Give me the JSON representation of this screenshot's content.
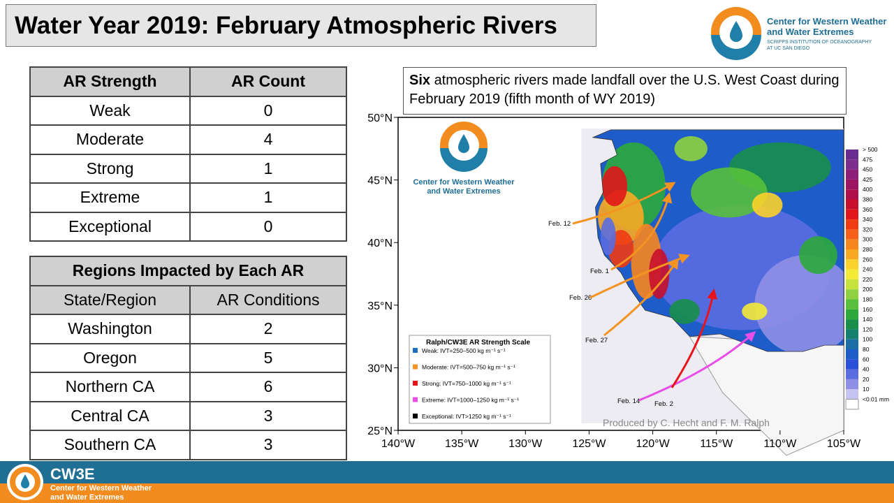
{
  "title": "Water Year 2019: February Atmospheric Rivers",
  "logo": {
    "line1": "Center for Western Weather",
    "line2": "and Water Extremes",
    "sub1": "SCRIPPS INSTITUTION OF OCEANOGRAPHY",
    "sub2": "AT UC SAN DIEGO"
  },
  "strength_table": {
    "headers": [
      "AR Strength",
      "AR Count"
    ],
    "rows": [
      [
        "Weak",
        0
      ],
      [
        "Moderate",
        4
      ],
      [
        "Strong",
        1
      ],
      [
        "Extreme",
        1
      ],
      [
        "Exceptional",
        0
      ]
    ]
  },
  "regions_table": {
    "title": "Regions Impacted by Each AR",
    "headers": [
      "State/Region",
      "AR Conditions"
    ],
    "rows": [
      [
        "Washington",
        2
      ],
      [
        "Oregon",
        5
      ],
      [
        "Northern CA",
        6
      ],
      [
        "Central CA",
        3
      ],
      [
        "Southern CA",
        3
      ]
    ]
  },
  "callout": {
    "bold": "Six",
    "text": "atmospheric rivers made landfall over the U.S. West Coast during February 2019 (fifth month of WY 2019)"
  },
  "map": {
    "lat_labels": [
      "50°N",
      "45°N",
      "40°N",
      "35°N",
      "30°N",
      "25°N"
    ],
    "lon_labels": [
      "140°W",
      "135°W",
      "130°W",
      "125°W",
      "120°W",
      "115°W",
      "110°W",
      "105°W"
    ],
    "logo_line1": "Center for Western Weather",
    "logo_line2": "and Water Extremes",
    "legend_title": "Ralph/CW3E AR Strength Scale",
    "legend": [
      {
        "label": "Weak: IVT=250–500 kg m⁻¹ s⁻¹",
        "color": "#1f6fc1"
      },
      {
        "label": "Moderate: IVT=500–750 kg m⁻¹ s⁻¹",
        "color": "#f39322"
      },
      {
        "label": "Strong: IVT=750–1000 kg m⁻¹ s⁻¹",
        "color": "#e8141b"
      },
      {
        "label": "Extreme: IVT=1000–1250 kg m⁻¹ s⁻¹",
        "color": "#e84de8"
      },
      {
        "label": "Exceptional: IVT>1250 kg m⁻¹ s⁻¹",
        "color": "#000000"
      }
    ],
    "arrows": [
      "Feb. 12",
      "Feb. 1",
      "Feb. 26",
      "Feb. 27",
      "Feb. 14",
      "Feb. 2"
    ],
    "credit": "Produced by C. Hecht and F. M. Ralph",
    "colorbar": {
      "labels": [
        "> 500",
        "475",
        "450",
        "425",
        "400",
        "380",
        "360",
        "340",
        "320",
        "300",
        "280",
        "260",
        "240",
        "220",
        "200",
        "180",
        "160",
        "140",
        "120",
        "100",
        "80",
        "60",
        "40",
        "20",
        "10",
        "<0.01 mm"
      ],
      "colors": [
        "#6a2c91",
        "#7b2e8e",
        "#8c1f77",
        "#9c1560",
        "#b0104a",
        "#c8102e",
        "#e0161b",
        "#f03a14",
        "#f6601a",
        "#f8861f",
        "#f9a824",
        "#fbd22a",
        "#f3eb36",
        "#c8e23c",
        "#8fd13e",
        "#58c03c",
        "#2ea83b",
        "#1a8f4a",
        "#16806e",
        "#1b6fa6",
        "#1d5cc9",
        "#2a4fd8",
        "#5a6de0",
        "#8f8fe6",
        "#c5c3f0",
        "#ffffff"
      ]
    }
  },
  "footer": {
    "brand": "CW3E",
    "line1": "Center for Western Weather",
    "line2": "and Water Extremes"
  }
}
